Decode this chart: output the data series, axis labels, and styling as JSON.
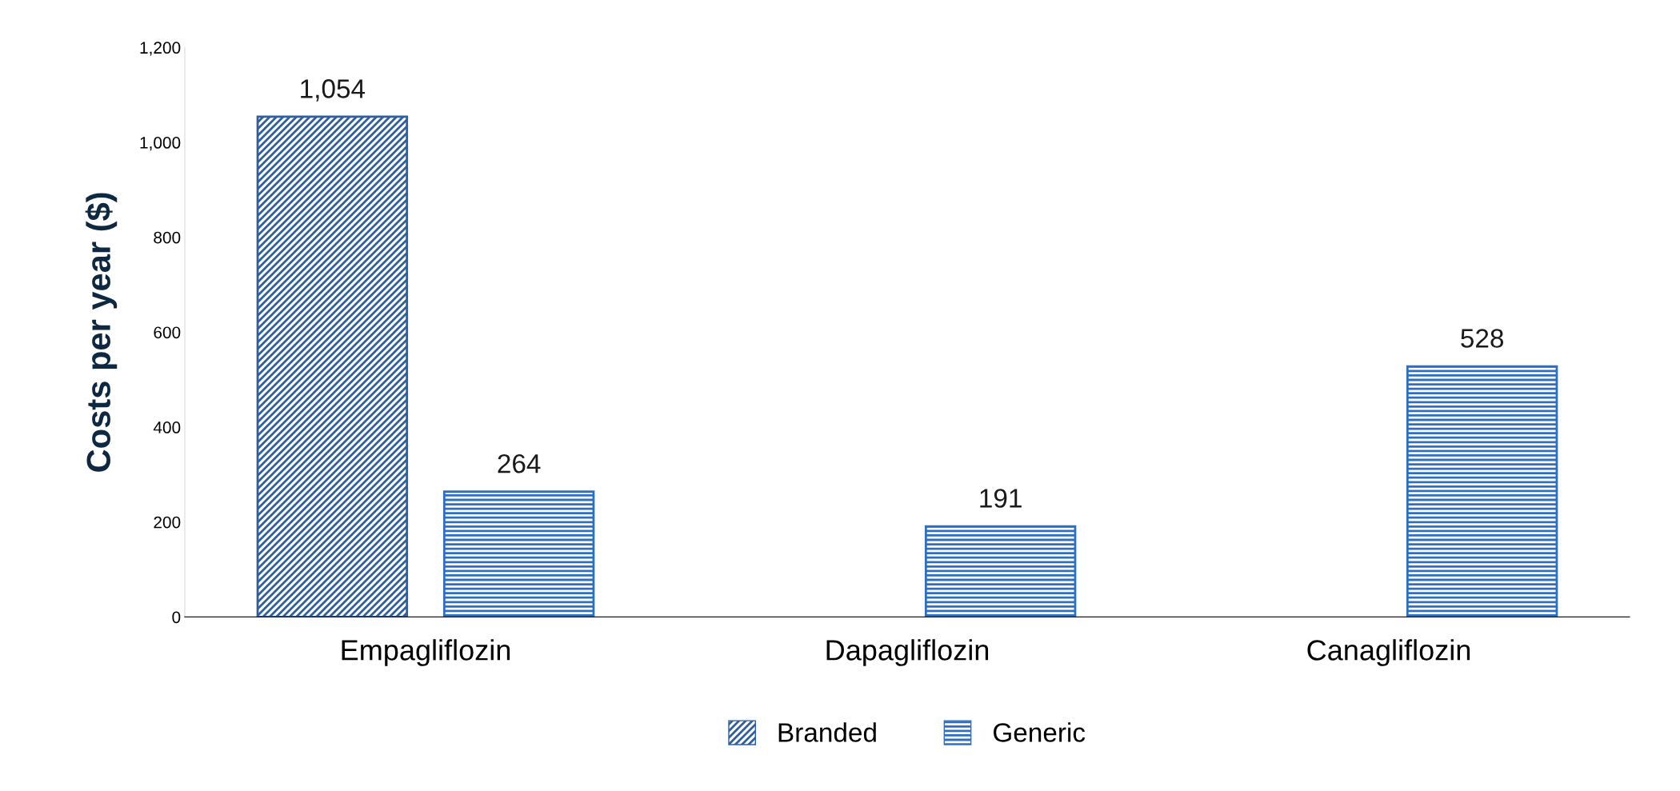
{
  "chart_data": {
    "type": "bar",
    "ylabel": "Costs per year ($)",
    "categories": [
      "Empagliflozin",
      "Dapagliflozin",
      "Canagliflozin"
    ],
    "series": [
      {
        "name": "Branded",
        "color": "#2f5f9e",
        "values": [
          1054,
          null,
          null
        ],
        "value_labels": [
          "1,054",
          null,
          null
        ]
      },
      {
        "name": "Generic",
        "color": "#2f6fc0",
        "values": [
          264,
          191,
          528
        ],
        "value_labels": [
          "264",
          "191",
          "528"
        ]
      }
    ],
    "ylim": [
      0,
      1200
    ],
    "yticks": [
      0,
      200,
      400,
      600,
      800,
      {
        "value": 1000,
        "label": "1,000"
      },
      {
        "value": 1200,
        "label": "1,200"
      }
    ],
    "grid": false,
    "legend": "bottom"
  }
}
